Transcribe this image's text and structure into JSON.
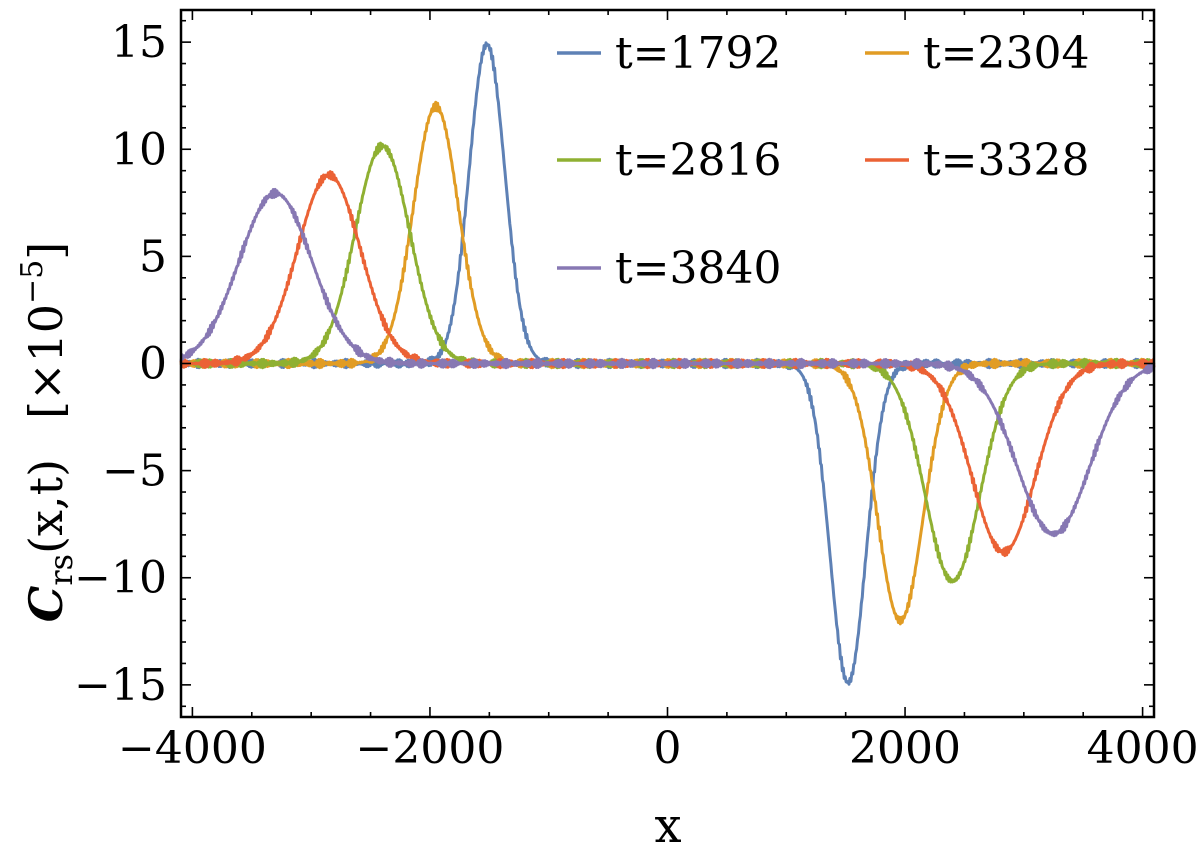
{
  "chart_data": {
    "type": "line",
    "xlabel": "x",
    "ylabel_main": "C",
    "ylabel_sub": "rs",
    "ylabel_args": "(x,t)",
    "ylabel_scale_prefix": "[×10",
    "ylabel_scale_exp": "−5",
    "ylabel_scale_suffix": "]",
    "xlim": [
      -4096,
      4096
    ],
    "ylim": [
      -16.5,
      16.5
    ],
    "xticks": [
      -4000,
      -2000,
      0,
      2000,
      4000
    ],
    "xtick_labels": [
      "−4000",
      "−2000",
      "0",
      "2000",
      "4000"
    ],
    "yticks": [
      -15,
      -10,
      -5,
      0,
      5,
      10,
      15
    ],
    "ytick_labels": [
      "−15",
      "−10",
      "−5",
      "0",
      "5",
      "10",
      "15"
    ],
    "grid": false,
    "legend_position": "top-right",
    "series": [
      {
        "name": "t=1792",
        "color": "#5e81b5",
        "pos_peak_x": -1520,
        "neg_peak_x": 1520,
        "amplitude": 14.9,
        "sigma": 150
      },
      {
        "name": "t=2304",
        "color": "#e19c24",
        "pos_peak_x": -1950,
        "neg_peak_x": 1960,
        "amplitude": 12.0,
        "sigma": 190
      },
      {
        "name": "t=2816",
        "color": "#8fb032",
        "pos_peak_x": -2400,
        "neg_peak_x": 2400,
        "amplitude": 10.15,
        "sigma": 230
      },
      {
        "name": "t=3328",
        "color": "#eb6235",
        "pos_peak_x": -2850,
        "neg_peak_x": 2830,
        "amplitude": 8.8,
        "sigma": 265
      },
      {
        "name": "t=3840",
        "color": "#8778b3",
        "pos_peak_x": -3300,
        "neg_peak_x": 3250,
        "amplitude": 7.95,
        "sigma": 305
      }
    ]
  }
}
